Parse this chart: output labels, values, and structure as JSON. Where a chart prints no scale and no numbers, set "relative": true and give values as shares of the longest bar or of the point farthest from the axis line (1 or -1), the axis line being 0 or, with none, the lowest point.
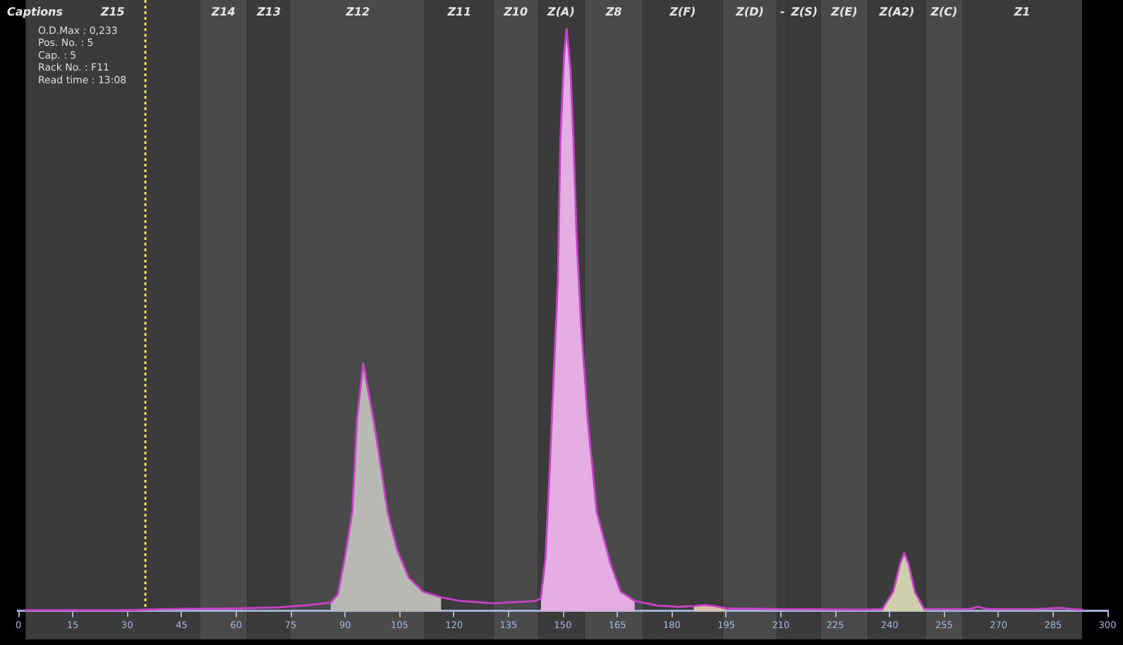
{
  "chart_data": {
    "type": "line",
    "title": "Captions",
    "annotations": [
      "O.D.Max : 0,233",
      "Pos. No. : 5",
      "Cap. : 5",
      "Rack No. : F11",
      "Read time : 13:08"
    ],
    "relative": true,
    "xlim": [
      0,
      300
    ],
    "xticks": [
      0,
      15,
      30,
      45,
      60,
      75,
      90,
      105,
      120,
      135,
      150,
      165,
      180,
      195,
      210,
      225,
      240,
      255,
      270,
      285,
      300
    ],
    "grid": false,
    "legend": false,
    "marker": "none",
    "bands": [
      {
        "axis": "x",
        "from": 2,
        "to": 50,
        "label": "Z15",
        "color": "#3b3b3b"
      },
      {
        "axis": "x",
        "from": 50,
        "to": 63,
        "label": "Z14",
        "color": "#4a4a4a"
      },
      {
        "axis": "x",
        "from": 63,
        "to": 75,
        "label": "Z13",
        "color": "#3b3b3b"
      },
      {
        "axis": "x",
        "from": 75,
        "to": 112,
        "label": "Z12",
        "color": "#4a4a4a"
      },
      {
        "axis": "x",
        "from": 112,
        "to": 131,
        "label": "Z11",
        "color": "#3b3b3b"
      },
      {
        "axis": "x",
        "from": 131,
        "to": 143,
        "label": "Z10",
        "color": "#4a4a4a"
      },
      {
        "axis": "x",
        "from": 143,
        "to": 156,
        "label": "Z(A)",
        "color": "#3b3b3b"
      },
      {
        "axis": "x",
        "from": 156,
        "to": 172,
        "label": "Z8",
        "color": "#4a4a4a"
      },
      {
        "axis": "x",
        "from": 172,
        "to": 194,
        "label": "Z(F)",
        "color": "#3b3b3b"
      },
      {
        "axis": "x",
        "from": 194,
        "to": 209,
        "label": "Z(D)",
        "color": "#4a4a4a"
      },
      {
        "axis": "x",
        "from": 209,
        "to": 212,
        "label": "-",
        "color": "#3b3b3b"
      },
      {
        "axis": "x",
        "from": 212,
        "to": 221,
        "label": "Z(S)",
        "color": "#3b3b3b"
      },
      {
        "axis": "x",
        "from": 221,
        "to": 234,
        "label": "Z(E)",
        "color": "#4a4a4a"
      },
      {
        "axis": "x",
        "from": 234,
        "to": 250,
        "label": "Z(A2)",
        "color": "#3b3b3b"
      },
      {
        "axis": "x",
        "from": 250,
        "to": 260,
        "label": "Z(C)",
        "color": "#4a4a4a"
      },
      {
        "axis": "x",
        "from": 260,
        "to": 293,
        "label": "Z1",
        "color": "#3b3b3b"
      }
    ],
    "ref_lines": [
      {
        "axis": "x",
        "value": 35,
        "color": "#e6df6e",
        "line_style": "dotted"
      }
    ],
    "series": [
      {
        "type": "line",
        "color": "#c940c9",
        "x": [
          2,
          30,
          40,
          60,
          72,
          80,
          86,
          88,
          90,
          92,
          93.3,
          95,
          97.8,
          99.8,
          101.7,
          104.3,
          107.5,
          111.4,
          116.5,
          121.8,
          130.9,
          142.5,
          143.9,
          145.2,
          146.4,
          147.5,
          148.6,
          149.3,
          150.3,
          151,
          152.1,
          152.9,
          153.8,
          155,
          156.8,
          159.3,
          163.1,
          165.9,
          169.8,
          176,
          182,
          186,
          189,
          192,
          195,
          210,
          232,
          238,
          241,
          242.9,
          244,
          245.2,
          246.9,
          249.5,
          256,
          262,
          264.3,
          267,
          280,
          287.4,
          290,
          293
        ],
        "values": [
          0.002,
          0.002,
          0.004,
          0.005,
          0.007,
          0.011,
          0.015,
          0.029,
          0.094,
          0.171,
          0.33,
          0.425,
          0.33,
          0.25,
          0.171,
          0.106,
          0.058,
          0.034,
          0.024,
          0.018,
          0.014,
          0.018,
          0.022,
          0.09,
          0.25,
          0.41,
          0.565,
          0.807,
          0.952,
          1,
          0.928,
          0.807,
          0.638,
          0.493,
          0.331,
          0.171,
          0.082,
          0.034,
          0.018,
          0.01,
          0.008,
          0.009,
          0.011,
          0.009,
          0.005,
          0.004,
          0.003,
          0.004,
          0.034,
          0.082,
          0.1,
          0.082,
          0.034,
          0.004,
          0.004,
          0.004,
          0.008,
          0.004,
          0.004,
          0.006,
          0.004,
          0.003
        ]
      },
      {
        "type": "area",
        "color": "#b9b9b4",
        "x": [
          86,
          88,
          90,
          92,
          93.3,
          95,
          97.8,
          99.8,
          101.7,
          104.3,
          107.5,
          111.4,
          116.5
        ],
        "values": [
          0.015,
          0.029,
          0.094,
          0.171,
          0.33,
          0.425,
          0.33,
          0.25,
          0.171,
          0.106,
          0.058,
          0.034,
          0.024
        ]
      },
      {
        "type": "area",
        "color": "#e2aee2",
        "x": [
          143.9,
          145.2,
          146.4,
          147.5,
          148.6,
          149.3,
          150.3,
          151,
          152.1,
          152.9,
          153.8,
          155,
          156.8,
          159.3,
          163.1,
          165.9,
          169.8
        ],
        "values": [
          0.022,
          0.09,
          0.25,
          0.41,
          0.565,
          0.807,
          0.952,
          1,
          0.928,
          0.807,
          0.638,
          0.493,
          0.331,
          0.171,
          0.082,
          0.034,
          0.018
        ]
      },
      {
        "type": "area",
        "color": "#d9bfa8",
        "x": [
          186,
          189,
          192,
          195
        ],
        "values": [
          0.009,
          0.011,
          0.009,
          0.005
        ]
      },
      {
        "type": "area",
        "color": "#cfcfae",
        "x": [
          238,
          241,
          242.9,
          244,
          245.2,
          246.9,
          249.5
        ],
        "values": [
          0.004,
          0.034,
          0.082,
          0.1,
          0.082,
          0.034,
          0.004
        ]
      }
    ]
  }
}
